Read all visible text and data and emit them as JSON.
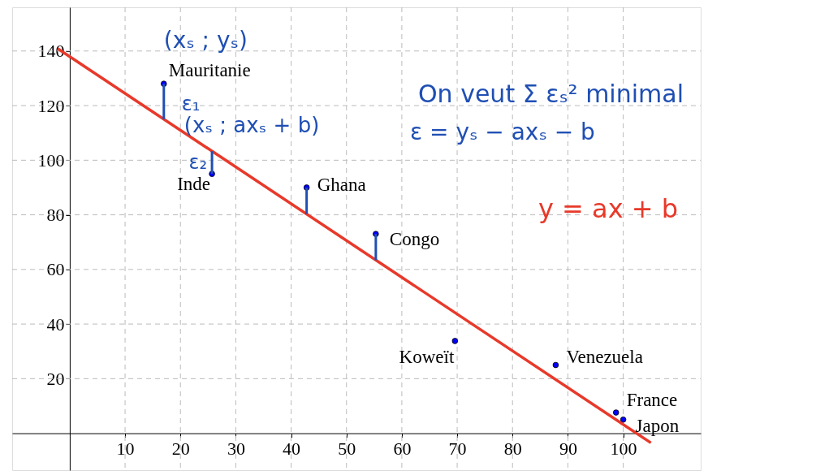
{
  "chart_data": {
    "type": "scatter",
    "xlim": [
      -10.4,
      114
    ],
    "ylim": [
      -13.5,
      156
    ],
    "xticks": [
      10,
      20,
      30,
      40,
      50,
      60,
      70,
      80,
      90,
      100
    ],
    "yticks": [
      20,
      40,
      60,
      80,
      100,
      120,
      140
    ],
    "grid": true,
    "marker": "circle",
    "series": [
      {
        "color": "#0000ff",
        "x": [
          17,
          25.7,
          42.8,
          55.3,
          69.6,
          87.8,
          98.7,
          100
        ],
        "values": [
          128,
          95,
          90,
          73,
          33.8,
          25,
          7.6,
          5
        ],
        "errors": [
          [
            115,
            128
          ],
          [
            95,
            103.3
          ],
          [
            80.3,
            90
          ],
          [
            63.4,
            73
          ],
          null,
          null,
          null,
          null
        ]
      },
      {
        "type": "line",
        "name": "y = ax + b",
        "color": "#e8392a",
        "marker": "none",
        "line_style": "solid",
        "x": [
          -2.2,
          105
        ],
        "values": [
          140.9,
          -3.5
        ]
      }
    ],
    "annotations": [
      {
        "text": "(xₛ ; yₛ)",
        "x": 17,
        "y": 128
      },
      {
        "text": "ε₁",
        "x": 17,
        "y": 121.5
      },
      {
        "text": "(xₛ ; axₛ + b)",
        "x": 17,
        "y": 115
      },
      {
        "text": "ε₂",
        "x": 25.7,
        "y": 99
      },
      "On veut Σ εₛ² minimal",
      "ε = yₛ − axₛ − b",
      {
        "text": "Mauritanie",
        "x": 17,
        "y": 128
      },
      {
        "text": "Inde",
        "x": 25.7,
        "y": 95
      },
      {
        "text": "Ghana",
        "x": 42.8,
        "y": 90
      },
      {
        "text": "Congo",
        "x": 55.3,
        "y": 73
      },
      {
        "text": "Koweït",
        "x": 69.6,
        "y": 33.8
      },
      {
        "text": "Venezuela",
        "x": 87.8,
        "y": 25
      },
      {
        "text": "France",
        "x": 98.7,
        "y": 7.6
      },
      {
        "text": "Japon",
        "x": 100,
        "y": 5
      }
    ]
  }
}
